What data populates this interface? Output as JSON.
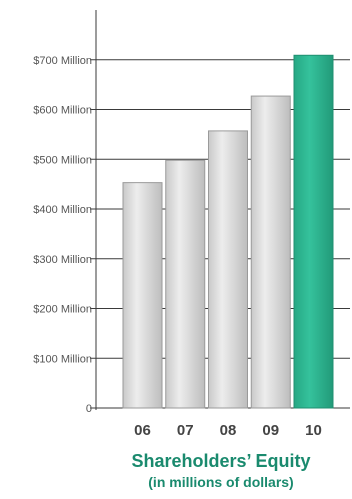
{
  "chart_data": {
    "type": "bar",
    "title": "Shareholders’ Equity",
    "subtitle": "(in millions of dollars)",
    "categories": [
      "06",
      "07",
      "08",
      "09",
      "10"
    ],
    "values": [
      453,
      498,
      557,
      627,
      709
    ],
    "ylim": [
      0,
      800
    ],
    "yticks": [
      0,
      100,
      200,
      300,
      400,
      500,
      600,
      700
    ],
    "ytick_labels": [
      "0",
      "$100 Million",
      "$200 Million",
      "$300 Million",
      "$400 Million",
      "$500 Million",
      "$600 Million",
      "$700 Million"
    ],
    "grid": true,
    "colors": {
      "default_bar": "#d9d9d9",
      "highlight_bar": "#2fb994",
      "title": "#1a8a6e",
      "grid": "#3a3a3a"
    },
    "highlight_category": "10"
  }
}
